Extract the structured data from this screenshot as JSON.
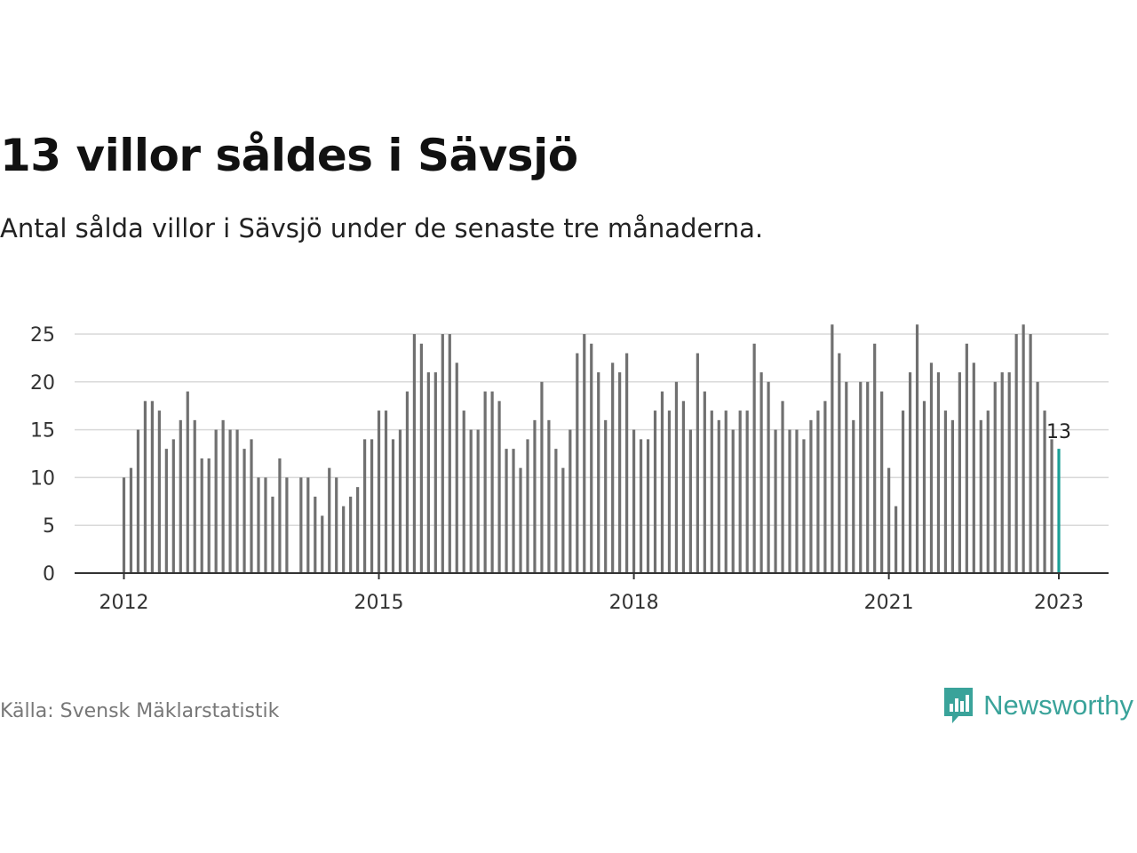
{
  "header": {
    "title": "13 villor såldes i Sävsjö",
    "subtitle": "Antal sålda villor i Sävsjö under de senaste tre månaderna."
  },
  "footer": {
    "source": "Källa: Svensk Mäklarstatistik",
    "brand": "Newsworthy",
    "brand_icon": "newsworthy-chart-bubble-icon"
  },
  "colors": {
    "bar": "#707070",
    "highlight": "#1a9f97",
    "grid": "#d9d9d9",
    "axis": "#333333",
    "brand": "#3aa39a"
  },
  "chart_data": {
    "type": "bar",
    "x_start": "2012-01",
    "x_interval": "month",
    "ylim": [
      0,
      27
    ],
    "yticks": [
      0,
      5,
      10,
      15,
      20,
      25
    ],
    "xtick_labels": [
      "2012",
      "2015",
      "2018",
      "2021",
      "2023"
    ],
    "grid": true,
    "annotation": {
      "label": "13",
      "month": "2023-01"
    },
    "highlight_last": true,
    "values": [
      10,
      11,
      15,
      18,
      18,
      17,
      13,
      14,
      16,
      19,
      16,
      12,
      12,
      15,
      16,
      15,
      15,
      13,
      14,
      10,
      10,
      8,
      12,
      10,
      null,
      10,
      10,
      8,
      6,
      11,
      10,
      7,
      8,
      9,
      14,
      14,
      17,
      17,
      14,
      15,
      19,
      25,
      24,
      21,
      21,
      25,
      25,
      22,
      17,
      15,
      15,
      19,
      19,
      18,
      13,
      13,
      11,
      14,
      16,
      20,
      16,
      13,
      11,
      15,
      23,
      25,
      24,
      21,
      16,
      22,
      21,
      23,
      15,
      14,
      14,
      17,
      19,
      17,
      20,
      18,
      15,
      23,
      19,
      17,
      16,
      17,
      15,
      17,
      17,
      24,
      21,
      20,
      15,
      18,
      15,
      15,
      14,
      16,
      17,
      18,
      26,
      23,
      20,
      16,
      20,
      20,
      24,
      19,
      11,
      7,
      17,
      21,
      26,
      18,
      22,
      21,
      17,
      16,
      21,
      24,
      22,
      16,
      17,
      20,
      21,
      21,
      25,
      26,
      25,
      20,
      17,
      14,
      13
    ]
  }
}
